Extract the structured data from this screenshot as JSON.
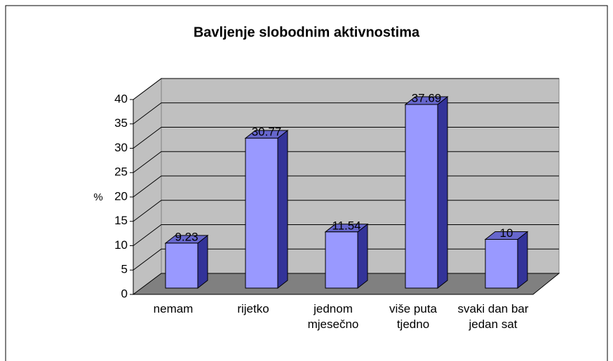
{
  "chart_data": {
    "type": "bar3d",
    "title": "Bavljenje slobodnim aktivnostima",
    "y_label": "%",
    "categories": [
      "nemam",
      "rijetko",
      "jednom mjesečno",
      "više puta tjedno",
      "svaki dan bar jedan sat"
    ],
    "values": [
      9.23,
      30.77,
      11.54,
      37.69,
      10
    ],
    "color": "#9999ff",
    "ylim": [
      0,
      40
    ],
    "yticks": [
      0,
      5,
      10,
      15,
      20,
      25,
      30,
      35,
      40
    ],
    "grid": true
  }
}
